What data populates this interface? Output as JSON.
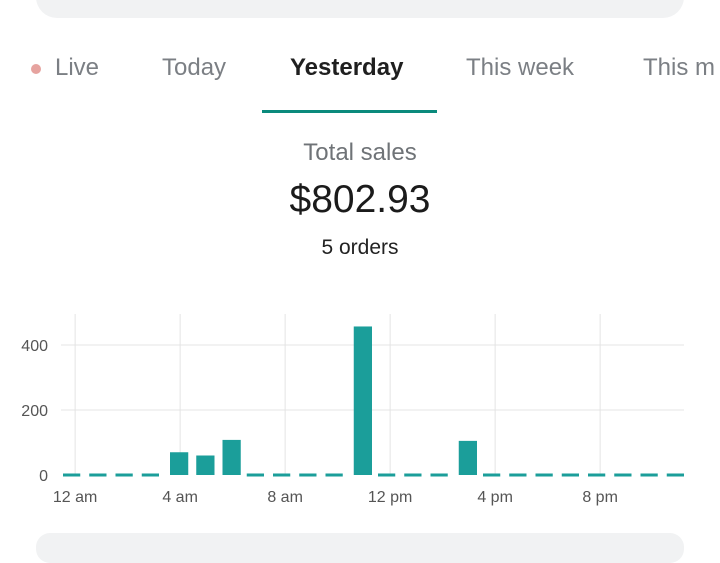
{
  "tabs": [
    {
      "label": "Live",
      "active": false
    },
    {
      "label": "Today",
      "active": false
    },
    {
      "label": "Yesterday",
      "active": true
    },
    {
      "label": "This week",
      "active": false
    },
    {
      "label": "This m",
      "active": false
    }
  ],
  "summary": {
    "label": "Total sales",
    "value": "$802.93",
    "orders": "5 orders"
  },
  "colors": {
    "accent": "#0a8a7c",
    "bar": "#1b9e9a",
    "live_dot": "#e6a39f"
  },
  "chart_data": {
    "type": "bar",
    "title": "",
    "xlabel": "",
    "ylabel": "",
    "ylim": [
      0,
      500
    ],
    "y_ticks": [
      0,
      200,
      400
    ],
    "x_tick_labels": [
      "12 am",
      "4 am",
      "8 am",
      "12 pm",
      "4 pm",
      "8 pm"
    ],
    "categories": [
      "12 am",
      "1 am",
      "2 am",
      "3 am",
      "4 am",
      "5 am",
      "6 am",
      "7 am",
      "8 am",
      "9 am",
      "10 am",
      "11 am",
      "12 pm",
      "1 pm",
      "2 pm",
      "3 pm",
      "4 pm",
      "5 pm",
      "6 pm",
      "7 pm",
      "8 pm",
      "9 pm",
      "10 pm",
      "11 pm"
    ],
    "values": [
      0,
      0,
      0,
      0,
      70,
      60,
      108,
      0,
      0,
      0,
      0,
      457,
      0,
      0,
      0,
      105,
      0,
      0,
      0,
      0,
      0,
      0,
      0,
      0
    ],
    "grid": true,
    "legend": "none"
  }
}
